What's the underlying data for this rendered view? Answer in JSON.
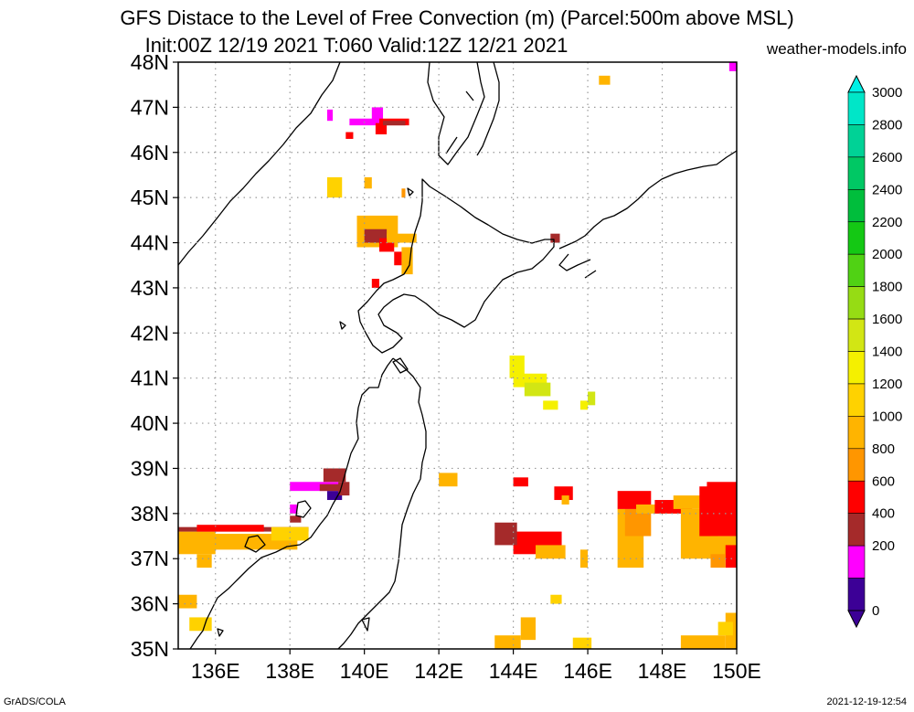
{
  "title_line1": "GFS Distace to the Level of Free Convection (m) (Parcel:500m above MSL)",
  "title_line2": "Init:00Z 12/19 2021 T:060 Valid:12Z 12/21 2021",
  "website": "weather-models.info",
  "footer_left": "GrADS/COLA",
  "footer_right": "2021-12-19-12:54",
  "map": {
    "lat_labels": [
      "48N",
      "47N",
      "46N",
      "45N",
      "44N",
      "43N",
      "42N",
      "41N",
      "40N",
      "39N",
      "38N",
      "37N",
      "36N",
      "35N"
    ],
    "lon_labels": [
      "136E",
      "138E",
      "140E",
      "142E",
      "144E",
      "146E",
      "148E",
      "150E"
    ],
    "lon_range": [
      135,
      150
    ],
    "lat_range": [
      35,
      48
    ],
    "grid": true
  },
  "colorbar": {
    "labels": [
      "3000",
      "2800",
      "2600",
      "2400",
      "2200",
      "2000",
      "1800",
      "1600",
      "1400",
      "1200",
      "1000",
      "800",
      "600",
      "400",
      "200",
      "0"
    ],
    "colors": [
      "#00e6c8",
      "#00d296",
      "#00c864",
      "#00be3c",
      "#14c814",
      "#50d214",
      "#96dc14",
      "#d2e614",
      "#f5f000",
      "#ffd200",
      "#ffb400",
      "#ff9600",
      "#ff0000",
      "#a52a2a",
      "#ff00ff",
      "#3c0096"
    ]
  },
  "colors": {
    "c100": "#3c0096",
    "c200": "#ff00ff",
    "c400": "#a52a2a",
    "c600": "#ff0000",
    "c800": "#ff9600",
    "c1000": "#ffb400",
    "c1200": "#ffd200",
    "c1400": "#f5f000",
    "c1600": "#d2e614",
    "c1800": "#96dc14"
  }
}
